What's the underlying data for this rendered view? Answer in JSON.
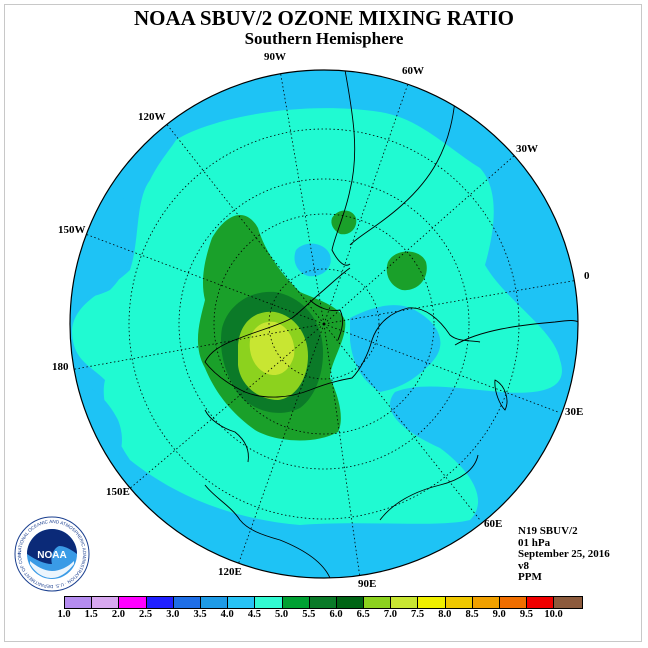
{
  "title": "NOAA SBUV/2 OZONE MIXING RATIO",
  "subtitle": "Southern Hemisphere",
  "longitude_labels": [
    "90W",
    "60W",
    "30W",
    "0",
    "30E",
    "60E",
    "90E",
    "120E",
    "150E",
    "180",
    "150W",
    "120W"
  ],
  "info": [
    "N19 SBUV/2",
    "01 hPa",
    "September 25, 2016",
    "v8",
    "PPM"
  ],
  "logo": {
    "text": "NOAA",
    "ring_text": "NATIONAL OCEANIC AND ATMOSPHERIC ADMINISTRATION · U.S. DEPARTMENT OF COMMERCE"
  },
  "legend": {
    "labels": [
      "1.0",
      "1.5",
      "2.0",
      "2.5",
      "3.0",
      "3.5",
      "4.0",
      "4.5",
      "5.0",
      "5.5",
      "6.0",
      "6.5",
      "7.0",
      "7.5",
      "8.0",
      "8.5",
      "9.0",
      "9.5",
      "10.0"
    ],
    "colors": [
      "#b58cf0",
      "#d8a8f0",
      "#ff00ff",
      "#2020ff",
      "#1e6ee6",
      "#1e9be6",
      "#28c3f5",
      "#32fad2",
      "#00a032",
      "#0a7a28",
      "#006414",
      "#8cd21e",
      "#c8e632",
      "#f0f000",
      "#f0c800",
      "#f0a000",
      "#f06e00",
      "#f00000",
      "#8c5a3c"
    ]
  },
  "map_colors": {
    "ocean_base": "#1ec3f5",
    "band_45": "#20fad2",
    "band_50": "#1aa02a",
    "band_55": "#0b7a28",
    "band_60": "#8cd21e",
    "band_65": "#c8e632"
  }
}
